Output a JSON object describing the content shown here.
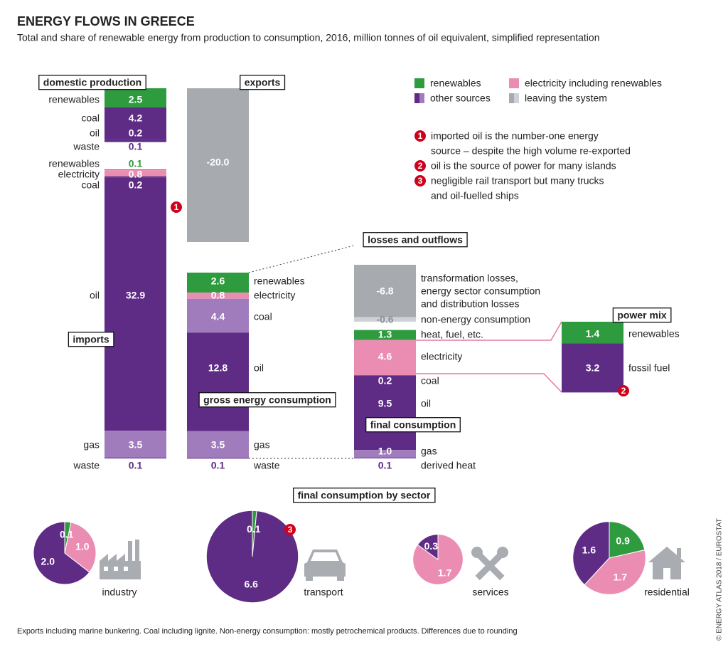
{
  "header": {
    "title": "ENERGY FLOWS IN GREECE",
    "subtitle": "Total and share of renewable energy from production to consumption, 2016, million tonnes of oil equivalent, simplified representation"
  },
  "legend": [
    {
      "label": "renewables",
      "colors": [
        "#2e9b3e"
      ]
    },
    {
      "label": "electricity including renewables",
      "colors": [
        "#eb8db3"
      ]
    },
    {
      "label": "other sources",
      "colors": [
        "#5e2b85",
        "#a07cbd"
      ]
    },
    {
      "label": "leaving the system",
      "colors": [
        "#a7abb0",
        "#ced1d5"
      ]
    }
  ],
  "notes": [
    {
      "marker": "1",
      "lines": [
        "imported oil is the number-one energy",
        "source – despite the high volume re-exported"
      ]
    },
    {
      "marker": "2",
      "lines": [
        "oil is the source of power for many islands"
      ]
    },
    {
      "marker": "3",
      "lines": [
        "negligible rail transport but many trucks",
        "and oil-fuelled ships"
      ]
    }
  ],
  "stacks": [
    {
      "title": "domestic production",
      "segments": [
        {
          "label": "renewables",
          "value": 2.5,
          "color": "#2e9b3e"
        },
        {
          "label": "coal",
          "value": 4.2,
          "color": "#5e2b85"
        },
        {
          "label": "oil",
          "value": 0.2,
          "color": "#5e2b85"
        },
        {
          "label": "waste",
          "value": 0.1,
          "color": "#5e2b85"
        }
      ]
    },
    {
      "title": "imports",
      "segments": [
        {
          "label": "renewables",
          "value": 0.1,
          "color": "#2e9b3e"
        },
        {
          "label": "electricity",
          "value": 0.8,
          "color": "#eb8db3"
        },
        {
          "label": "coal",
          "value": 0.2,
          "color": "#5e2b85"
        },
        {
          "label": "oil",
          "value": 32.9,
          "color": "#5e2b85"
        },
        {
          "label": "gas",
          "value": 3.5,
          "color": "#a07cbd"
        },
        {
          "label": "waste",
          "value": 0.1,
          "color": "#5e2b85"
        }
      ]
    },
    {
      "title": "exports",
      "segments": [
        {
          "value": {
            "value": -20,
            "label": "-20.0"
          },
          "color": "#a7abb0"
        }
      ]
    },
    {
      "title": "gross energy consumption",
      "segments": [
        {
          "label": "renewables",
          "value": 2.6,
          "color": "#2e9b3e"
        },
        {
          "label": "electricity",
          "value": 0.8,
          "color": "#eb8db3"
        },
        {
          "label": "coal",
          "value": 4.4,
          "color": "#a07cbd"
        },
        {
          "label": "oil",
          "value": 12.8,
          "color": "#5e2b85"
        },
        {
          "label": "gas",
          "value": 3.5,
          "color": "#a07cbd"
        },
        {
          "label": "waste",
          "value": 0.1,
          "color": "#5e2b85"
        }
      ]
    },
    {
      "title": "losses and outflows",
      "segments": [
        {
          "label": [
            "transformation losses,",
            "energy sector consumption",
            "and distribution losses"
          ],
          "value": -6.8,
          "color": "#a7abb0"
        },
        {
          "label": "non-energy consumption",
          "value": -0.6,
          "color": "#ced1d5"
        }
      ]
    },
    {
      "title": "final consumption",
      "segments": [
        {
          "label": "heat, fuel, etc.",
          "value": 1.3,
          "color": "#2e9b3e"
        },
        {
          "label": "electricity",
          "value": 4.6,
          "color": "#eb8db3"
        },
        {
          "label": "coal",
          "value": 0.2,
          "color": "#5e2b85"
        },
        {
          "label": "oil",
          "value": 9.5,
          "color": "#5e2b85"
        },
        {
          "label": "gas",
          "value": {
            "value": 1,
            "label": "1.0"
          },
          "color": "#a07cbd"
        },
        {
          "label": "derived heat",
          "value": 0.1,
          "color": "#5e2b85"
        }
      ]
    },
    {
      "title": "power mix",
      "segments": [
        {
          "label": "renewables",
          "value": 1.4,
          "color": "#2e9b3e"
        },
        {
          "label": "fossil fuel",
          "value": 3.2,
          "color": "#5e2b85"
        }
      ]
    }
  ],
  "sectors": {
    "title": "final consumption by sector",
    "pies": [
      {
        "label": "industry",
        "slices": [
          {
            "value": 0.1,
            "color": "#2e9b3e"
          },
          {
            "value": {
              "value": 1,
              "label": "1.0"
            },
            "color": "#eb8db3"
          },
          {
            "value": {
              "value": 2,
              "label": "2.0"
            },
            "color": "#5e2b85"
          }
        ]
      },
      {
        "label": "transport",
        "slices": [
          {
            "value": 0.1,
            "color": "#2e9b3e"
          },
          {
            "value": 6.6,
            "color": "#5e2b85"
          }
        ]
      },
      {
        "label": "services",
        "slices": [
          {
            "value": 1.7,
            "color": "#eb8db3"
          },
          {
            "value": 0.3,
            "color": "#5e2b85"
          }
        ]
      },
      {
        "label": "residential",
        "slices": [
          {
            "value": 0.9,
            "color": "#2e9b3e"
          },
          {
            "value": 1.7,
            "color": "#eb8db3"
          },
          {
            "value": 1.6,
            "color": "#5e2b85"
          }
        ]
      }
    ]
  },
  "footnote": "Exports including marine bunkering. Coal including lignite. Non-energy consumption: mostly petrochemical products. Differences due to rounding",
  "credit": "© ENERGY ATLAS 2018 / EUROSTAT"
}
